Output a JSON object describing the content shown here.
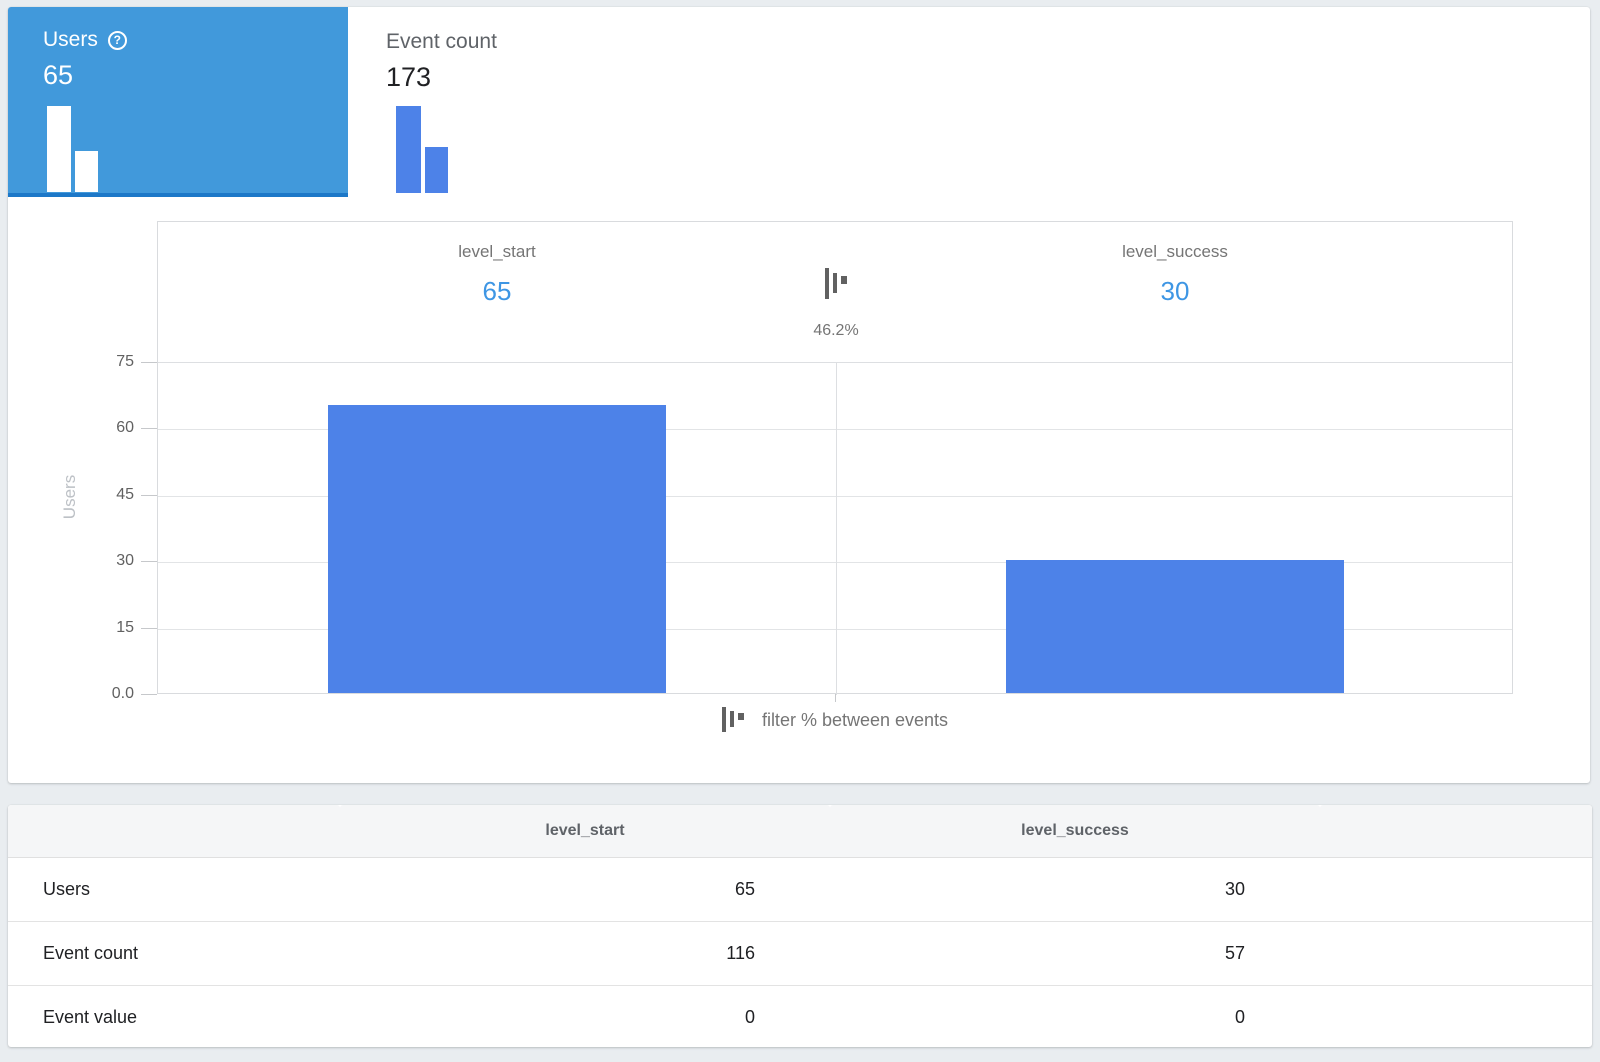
{
  "metric_tabs": {
    "users": {
      "label": "Users",
      "value": "65",
      "help_icon": "?"
    },
    "event_count": {
      "label": "Event count",
      "value": "173"
    }
  },
  "chart_data": {
    "type": "bar",
    "title": "",
    "ylabel": "Users",
    "ylim": [
      0,
      75
    ],
    "y_ticks": [
      "75",
      "60",
      "45",
      "30",
      "15",
      "0.0"
    ],
    "grid": "horizontal",
    "categories": [
      "level_start",
      "level_success"
    ],
    "values": [
      65,
      30
    ],
    "steps": [
      {
        "name": "level_start",
        "display_value": "65"
      },
      {
        "name": "level_success",
        "display_value": "30"
      }
    ],
    "conversion_pct": "46.2%",
    "legend_label": "filter % between events",
    "bar_color": "#4D82E8"
  },
  "table": {
    "columns": [
      "level_start",
      "level_success"
    ],
    "rows": [
      {
        "label": "Users",
        "values": [
          "65",
          "30"
        ]
      },
      {
        "label": "Event count",
        "values": [
          "116",
          "57"
        ]
      },
      {
        "label": "Event value",
        "values": [
          "0",
          "0"
        ]
      }
    ]
  },
  "colors": {
    "selected_tab_bg": "#4199DB",
    "selected_tab_border": "#1D78C8",
    "bar_blue": "#4D82E8",
    "step_value_blue": "#3E96E4",
    "page_bg": "#E9EDF0",
    "muted_text": "#757575"
  }
}
